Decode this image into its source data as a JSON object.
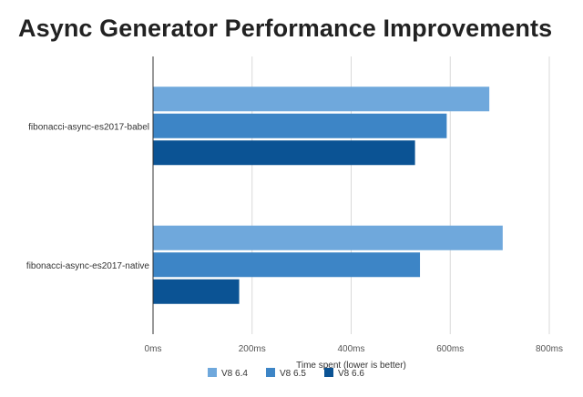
{
  "chart_data": {
    "type": "bar",
    "orientation": "horizontal",
    "title": "Async Generator Performance Improvements",
    "xlabel": "Time spent (lower is better)",
    "ylabel": "",
    "categories": [
      "fibonacci-async-es2017-babel",
      "fibonacci-async-es2017-native"
    ],
    "series": [
      {
        "name": "V8 6.4",
        "color": "#6fa8dc",
        "values": [
          678,
          705
        ]
      },
      {
        "name": "V8 6.5",
        "color": "#3d85c6",
        "values": [
          592,
          538
        ]
      },
      {
        "name": "V8 6.6",
        "color": "#0b5394",
        "values": [
          528,
          173
        ]
      }
    ],
    "xlim": [
      0,
      800
    ],
    "xticks": [
      0,
      200,
      400,
      600,
      800
    ],
    "xtick_labels": [
      "0ms",
      "200ms",
      "400ms",
      "600ms",
      "800ms"
    ],
    "grid": true,
    "legend": "bottom"
  }
}
